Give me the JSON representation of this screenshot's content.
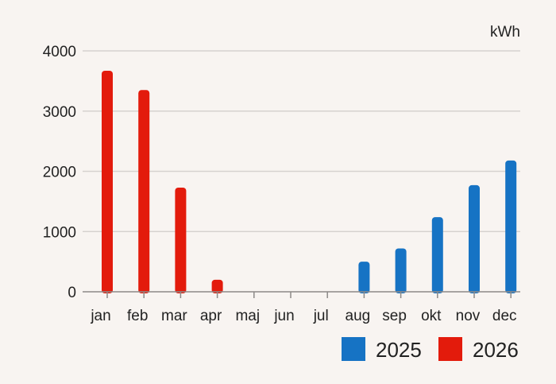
{
  "chart_data": {
    "type": "bar",
    "unit_label": "kWh",
    "categories": [
      "jan",
      "feb",
      "mar",
      "apr",
      "maj",
      "jun",
      "jul",
      "aug",
      "sep",
      "okt",
      "nov",
      "dec"
    ],
    "series": [
      {
        "name": "2025",
        "color": "#1673c4",
        "values": [
          null,
          null,
          null,
          null,
          null,
          null,
          null,
          500,
          720,
          1240,
          1770,
          2180
        ]
      },
      {
        "name": "2026",
        "color": "#e31b0c",
        "values": [
          3670,
          3350,
          1730,
          200,
          null,
          null,
          null,
          null,
          null,
          null,
          null,
          null
        ]
      }
    ],
    "y_ticks": [
      0,
      1000,
      2000,
      3000,
      4000
    ],
    "ylim": [
      0,
      4000
    ],
    "grid": true,
    "legend": {
      "position": "bottom-right",
      "order": [
        "2025",
        "2026"
      ]
    }
  }
}
